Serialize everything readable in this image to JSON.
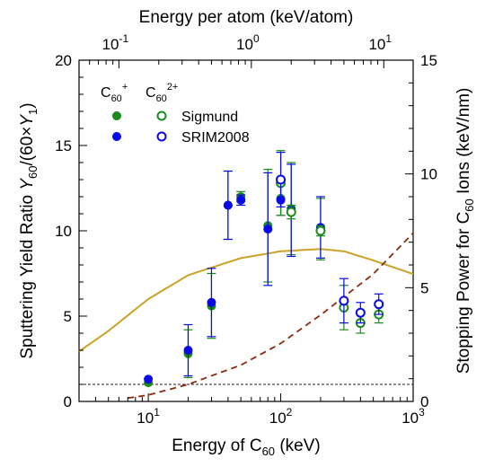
{
  "chart_data": {
    "type": "scatter",
    "x_axis": {
      "label_pre": "Energy of C",
      "label_sub": "60",
      "label_post": " (keV)",
      "scale": "log",
      "range": [
        3,
        1000
      ],
      "ticks": [
        {
          "value": 10,
          "base": "10",
          "exp": "1"
        },
        {
          "value": 100,
          "base": "10",
          "exp": "2"
        },
        {
          "value": 1000,
          "base": "10",
          "exp": "3"
        }
      ]
    },
    "top_axis": {
      "label": "Energy per atom (keV/atom)",
      "scale": "log",
      "ticks": [
        {
          "value": 0.1,
          "base": "10",
          "exp": "-1"
        },
        {
          "value": 1,
          "base": "10",
          "exp": "0"
        },
        {
          "value": 10,
          "base": "10",
          "exp": "1"
        }
      ]
    },
    "y_left": {
      "label_pre": "Sputtering Yield Ratio ",
      "label_var": "Y",
      "label_sub": "60",
      "label_mid": "/(60×",
      "label_var2": "Y",
      "label_sub2": "1",
      "label_post": ")",
      "range": [
        0,
        20
      ],
      "ticks": [
        "0",
        "5",
        "10",
        "15",
        "20"
      ]
    },
    "y_right": {
      "label_pre": "Stopping Power for C",
      "label_sub": "60",
      "label_post": " Ions (keV/nm)",
      "range": [
        0,
        15
      ],
      "ticks": [
        "0",
        "5",
        "10",
        "15"
      ]
    },
    "legend": {
      "col1": {
        "base": "C",
        "sub": "60",
        "sup": "+"
      },
      "col2": {
        "base": "C",
        "sub": "60",
        "sup": "2+"
      },
      "rows": [
        "Sigmund",
        "SRIM2008"
      ]
    },
    "colors": {
      "sigmund": "#1a8c1a",
      "srim": "#0a0ae6",
      "curve": "#c9a227",
      "dashed": "#8b2a10",
      "ref": "#222222"
    },
    "series": [
      {
        "name": "Sigmund",
        "charge": "C60+",
        "filled": true,
        "points": [
          {
            "x": 10,
            "y": 1.1,
            "err": 0
          },
          {
            "x": 20,
            "y": 2.8,
            "err": 1.4
          },
          {
            "x": 30,
            "y": 5.6,
            "err": 1.9
          },
          {
            "x": 40,
            "y": 11.5,
            "err": 2.0
          },
          {
            "x": 50,
            "y": 12.0,
            "err": 0.3
          },
          {
            "x": 80,
            "y": 10.3,
            "err": 3.3
          },
          {
            "x": 100,
            "y": 11.9,
            "err": 1.0
          },
          {
            "x": 120,
            "y": 11.3,
            "err": 2.7
          },
          {
            "x": 200,
            "y": 10.1,
            "err": 1.8
          }
        ]
      },
      {
        "name": "SRIM2008",
        "charge": "C60+",
        "filled": true,
        "points": [
          {
            "x": 10,
            "y": 1.3,
            "err": 0
          },
          {
            "x": 20,
            "y": 3.0,
            "err": 1.5
          },
          {
            "x": 30,
            "y": 5.8,
            "err": 2.0
          },
          {
            "x": 40,
            "y": 11.5,
            "err": 2.0
          },
          {
            "x": 50,
            "y": 11.8,
            "err": 0.3
          },
          {
            "x": 80,
            "y": 10.1,
            "err": 3.3
          },
          {
            "x": 100,
            "y": 11.8,
            "err": 0.9
          },
          {
            "x": 120,
            "y": 11.2,
            "err": 2.7
          },
          {
            "x": 200,
            "y": 10.2,
            "err": 1.8
          }
        ]
      },
      {
        "name": "Sigmund",
        "charge": "C60 2+",
        "filled": false,
        "points": [
          {
            "x": 100,
            "y": 12.8,
            "err": 1.9
          },
          {
            "x": 120,
            "y": 11.1,
            "err": 0.4
          },
          {
            "x": 200,
            "y": 10.0,
            "err": 0.3
          },
          {
            "x": 300,
            "y": 5.5,
            "err": 1.3
          },
          {
            "x": 400,
            "y": 4.6,
            "err": 0.6
          },
          {
            "x": 550,
            "y": 5.1,
            "err": 0.5
          }
        ]
      },
      {
        "name": "SRIM2008",
        "charge": "C60 2+",
        "filled": false,
        "points": [
          {
            "x": 100,
            "y": 13.0,
            "err": 1.6
          },
          {
            "x": 300,
            "y": 5.9,
            "err": 1.3
          },
          {
            "x": 400,
            "y": 5.2,
            "err": 0.6
          },
          {
            "x": 550,
            "y": 5.7,
            "err": 0.6
          }
        ]
      }
    ],
    "stopping_power_curve": {
      "axis": "right",
      "points": [
        [
          3,
          2.2
        ],
        [
          5,
          3.1
        ],
        [
          10,
          4.5
        ],
        [
          20,
          5.55
        ],
        [
          50,
          6.3
        ],
        [
          100,
          6.6
        ],
        [
          200,
          6.7
        ],
        [
          300,
          6.6
        ],
        [
          500,
          6.2
        ],
        [
          1000,
          5.6
        ]
      ]
    },
    "dashed_curve": {
      "axis": "right",
      "points": [
        [
          7,
          0.15
        ],
        [
          10,
          0.28
        ],
        [
          20,
          0.75
        ],
        [
          50,
          1.6
        ],
        [
          100,
          2.55
        ],
        [
          200,
          3.8
        ],
        [
          300,
          4.6
        ],
        [
          500,
          5.6
        ],
        [
          1000,
          7.4
        ]
      ]
    },
    "reference_line": {
      "axis": "left",
      "y": 1
    }
  }
}
